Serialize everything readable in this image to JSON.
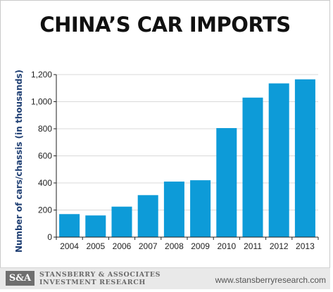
{
  "chart_data": {
    "type": "bar",
    "title": "CHINA’S CAR IMPORTS",
    "xlabel": "",
    "ylabel": "Number of cars/chassis (in thousands)",
    "categories": [
      "2004",
      "2005",
      "2006",
      "2007",
      "2008",
      "2009",
      "2010",
      "2011",
      "2012",
      "2013"
    ],
    "values": [
      170,
      160,
      225,
      310,
      410,
      420,
      805,
      1030,
      1135,
      1165
    ],
    "ylim": [
      0,
      1200
    ],
    "yticks": [
      0,
      200,
      400,
      600,
      800,
      1000,
      1200
    ],
    "ytick_labels": [
      "0",
      "200",
      "400",
      "600",
      "800",
      "1,000",
      "1,200"
    ],
    "grid": true,
    "bar_color": "#0d9bd8"
  },
  "footer": {
    "logo": "S&A",
    "brand_line1": "STANSBERRY & ASSOCIATES",
    "brand_line2": "INVESTMENT RESEARCH",
    "url": "www.stansberryresearch.com"
  }
}
